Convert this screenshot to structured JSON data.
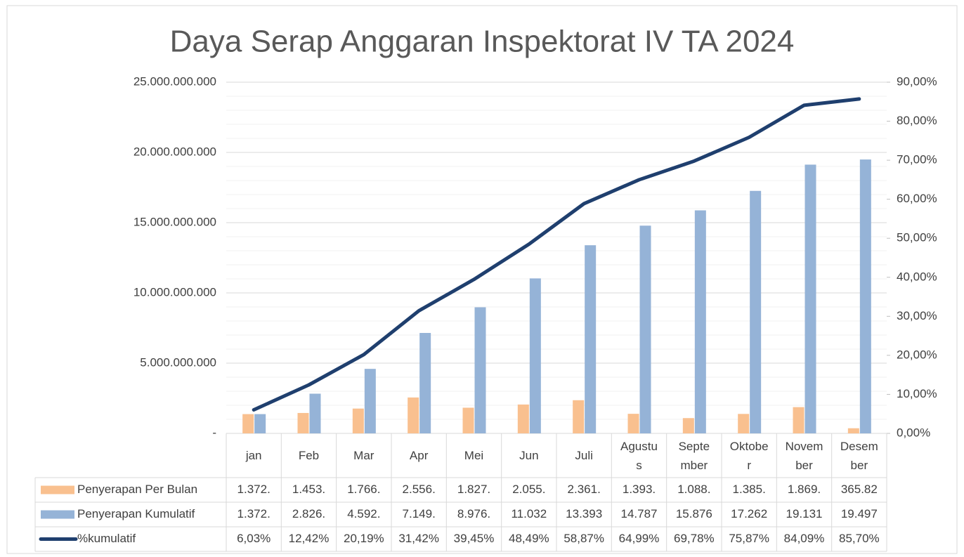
{
  "chart_data": {
    "type": "bar",
    "title": "Daya Serap Anggaran Inspektorat IV TA 2024",
    "categories": [
      "jan",
      "Feb",
      "Mar",
      "Apr",
      "Mei",
      "Jun",
      "Juli",
      "Agustus",
      "September",
      "Oktober",
      "November",
      "Desember"
    ],
    "series": [
      {
        "name": "Penyerapan Per Bulan",
        "color": "#f9c08f",
        "values": [
          1372000000,
          1453000000,
          1766000000,
          2556000000,
          1827000000,
          2055000000,
          2361000000,
          1393000000,
          1088000000,
          1385000000,
          1869000000,
          365820000
        ],
        "value_labels": [
          "1.372.",
          "1.453.",
          "1.766.",
          "2.556.",
          "1.827.",
          "2.055.",
          "2.361.",
          "1.393.",
          "1.088.",
          "1.385.",
          "1.869.",
          "365.82"
        ]
      },
      {
        "name": "Penyerapan Kumulatif",
        "color": "#95b3d7",
        "values": [
          1372000000,
          2826000000,
          4592000000,
          7149000000,
          8976000000,
          11032000000,
          13393000000,
          14787000000,
          15876000000,
          17262000000,
          19131000000,
          19497000000
        ],
        "value_labels": [
          "1.372.",
          "2.826.",
          "4.592.",
          "7.149.",
          "8.976.",
          "11.032",
          "13.393",
          "14.787",
          "15.876",
          "17.262",
          "19.131",
          "19.497"
        ]
      },
      {
        "name": "%kumulatif",
        "color": "#1f3f6e",
        "axis": "y2",
        "type": "line",
        "values": [
          6.03,
          12.42,
          20.19,
          31.42,
          39.45,
          48.49,
          58.87,
          64.99,
          69.78,
          75.87,
          84.09,
          85.7
        ],
        "value_labels": [
          "6,03%",
          "12,42%",
          "20,19%",
          "31,42%",
          "39,45%",
          "48,49%",
          "58,87%",
          "64,99%",
          "69,78%",
          "75,87%",
          "84,09%",
          "85,70%"
        ]
      }
    ],
    "ylim": [
      0,
      25000000000
    ],
    "yticks": [
      {
        "value": 0,
        "label": "-"
      },
      {
        "value": 5000000000,
        "label": "5.000.000.000"
      },
      {
        "value": 10000000000,
        "label": "10.000.000.000"
      },
      {
        "value": 15000000000,
        "label": "15.000.000.000"
      },
      {
        "value": 20000000000,
        "label": "20.000.000.000"
      },
      {
        "value": 25000000000,
        "label": "25.000.000.000"
      }
    ],
    "y2lim": [
      0,
      90
    ],
    "y2ticks": [
      {
        "value": 0,
        "label": "0,00%"
      },
      {
        "value": 10,
        "label": "10,00%"
      },
      {
        "value": 20,
        "label": "20,00%"
      },
      {
        "value": 30,
        "label": "30,00%"
      },
      {
        "value": 40,
        "label": "40,00%"
      },
      {
        "value": 50,
        "label": "50,00%"
      },
      {
        "value": 60,
        "label": "60,00%"
      },
      {
        "value": 70,
        "label": "70,00%"
      },
      {
        "value": 80,
        "label": "80,00%"
      },
      {
        "value": 90,
        "label": "90,00%"
      }
    ],
    "grid": true,
    "data_table": true
  }
}
